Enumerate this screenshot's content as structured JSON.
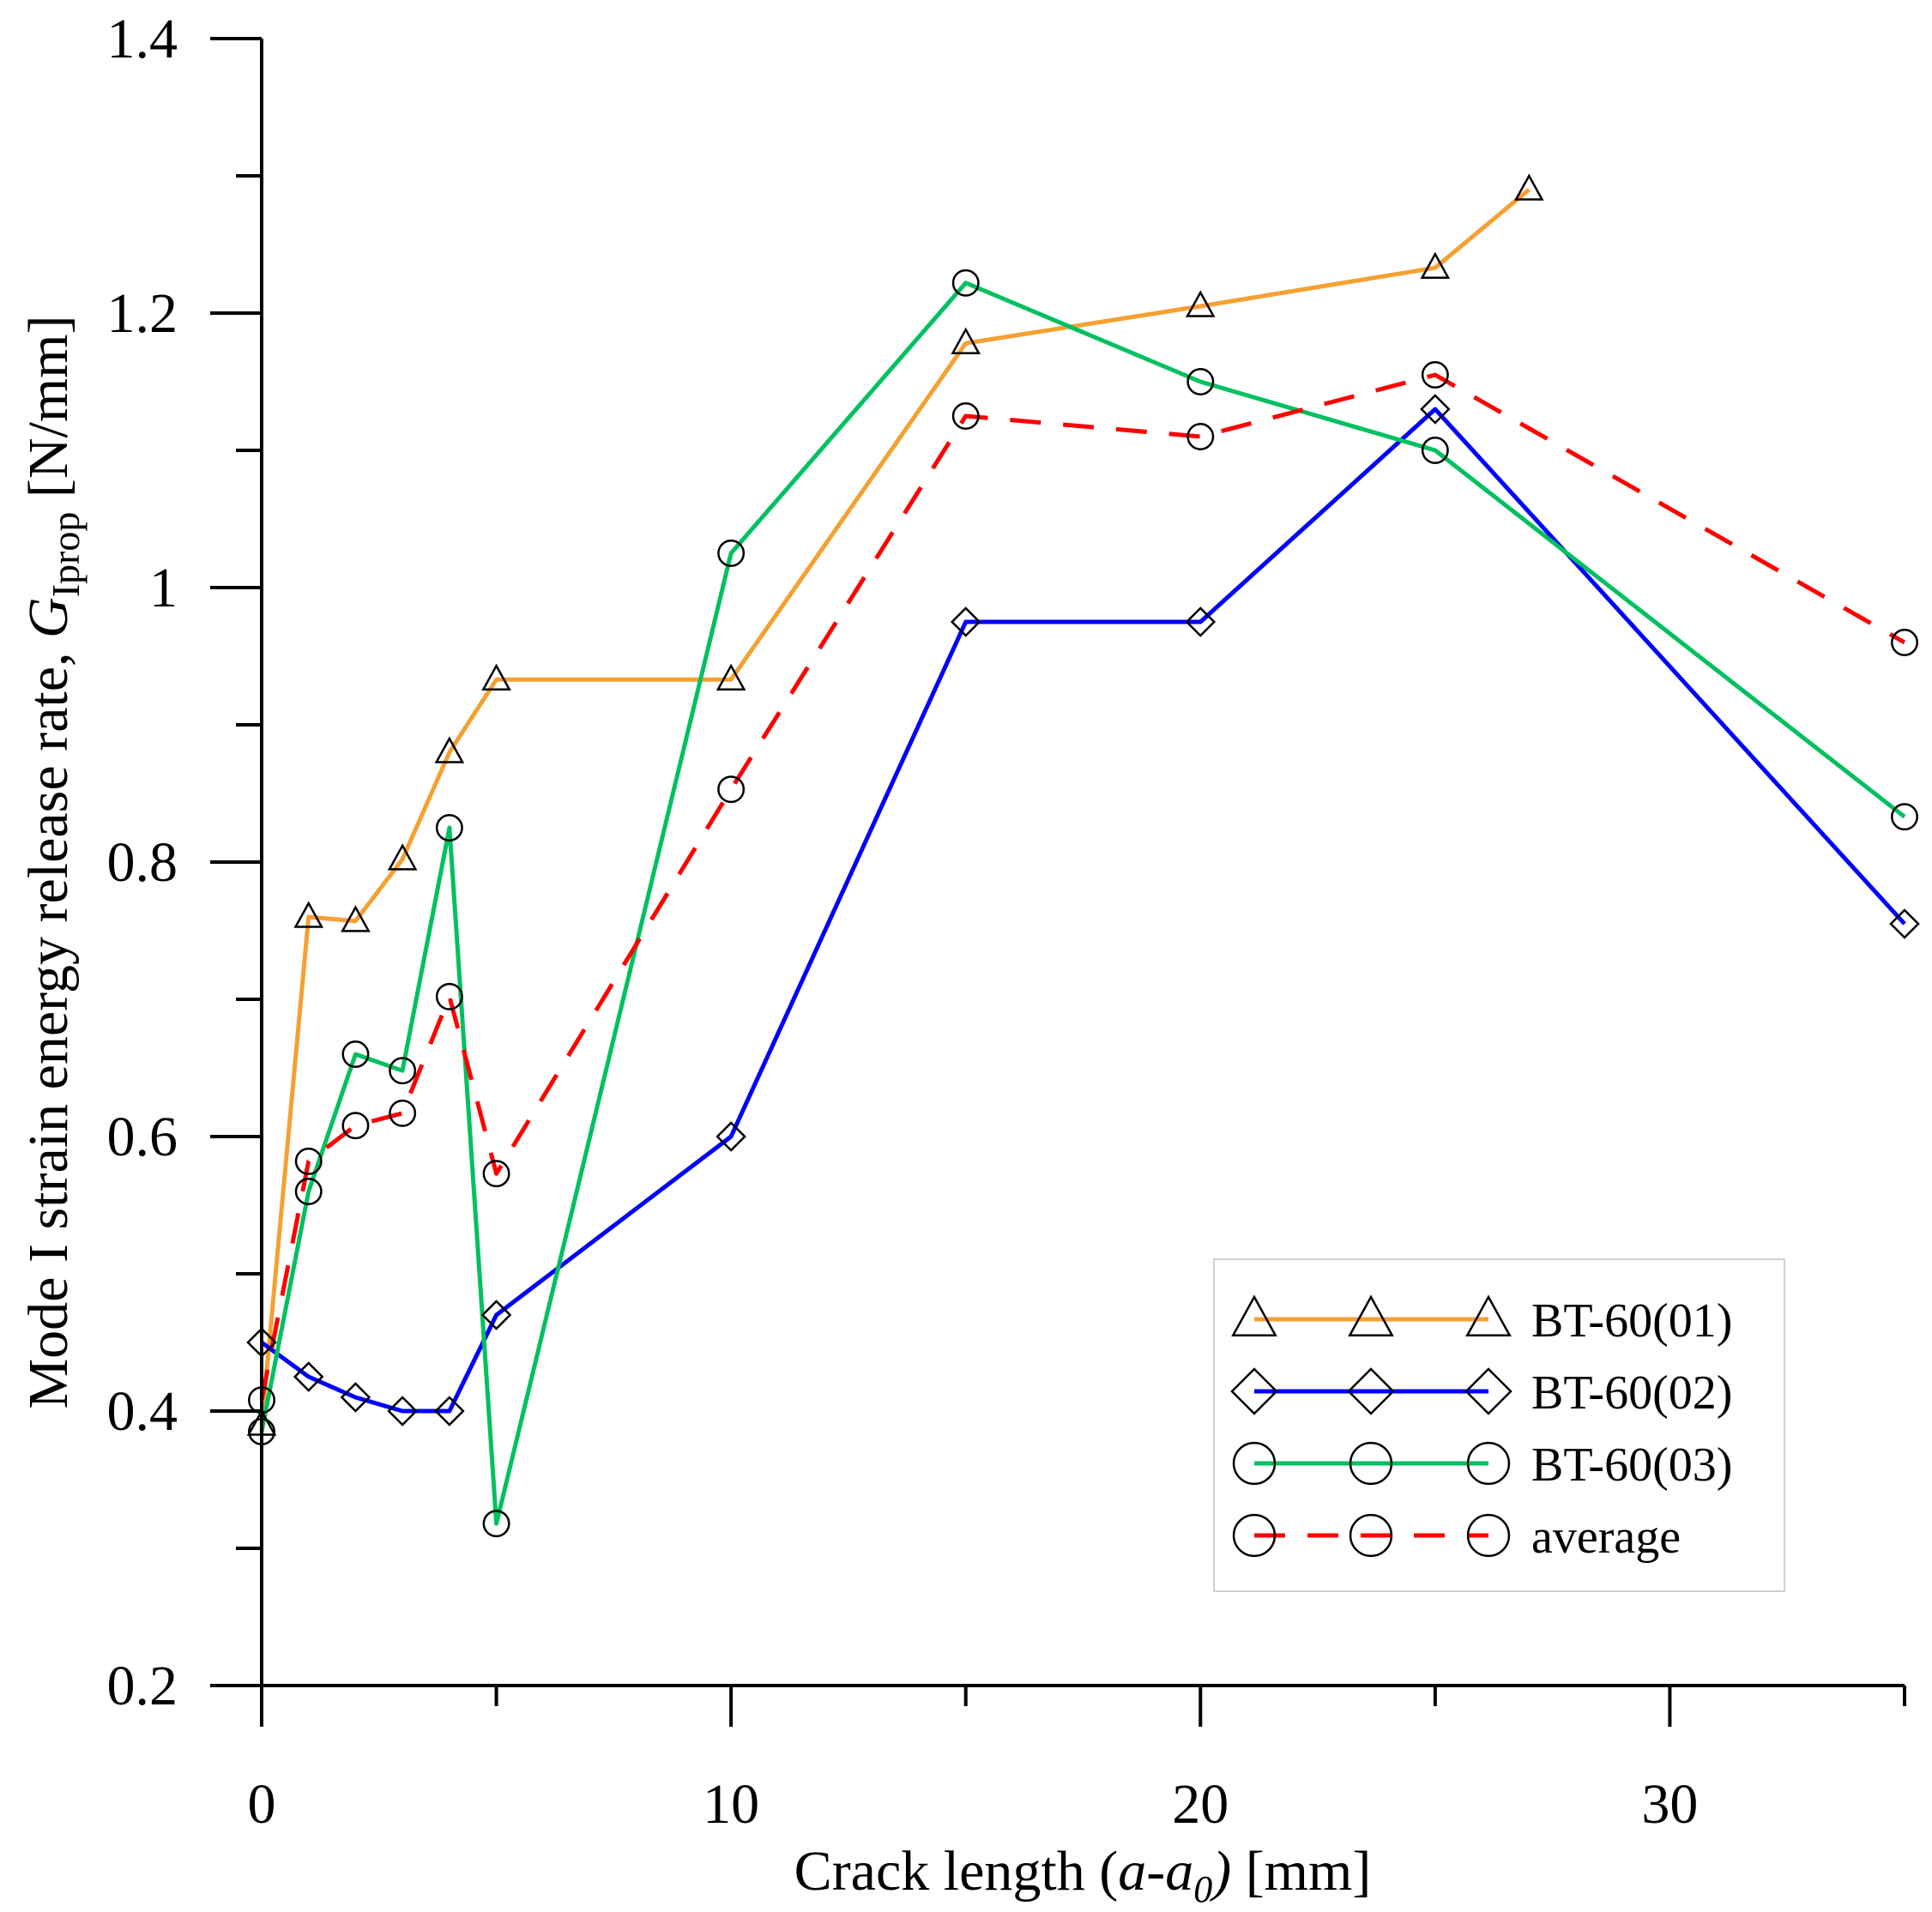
{
  "chart_data": {
    "type": "line",
    "title": "",
    "xlabel": {
      "prefix": "Crack length (",
      "var_a": "a",
      "dash": "-",
      "var_a0": "a",
      "sub0": "0",
      "close": ")",
      "suffix": " [mm]"
    },
    "ylabel": {
      "prefix": "Mode I strain energy release rate, ",
      "var_G": "G",
      "sub": "Iprop",
      "suffix": " [N/mm]"
    },
    "xlim": [
      0,
      35
    ],
    "ylim": [
      0.2,
      1.4
    ],
    "x_ticks": [
      {
        "value": 0,
        "label": "0"
      },
      {
        "value": 10,
        "label": "10"
      },
      {
        "value": 20,
        "label": "20"
      },
      {
        "value": 30,
        "label": "30"
      }
    ],
    "x_minor_ticks": [
      5,
      15,
      25,
      35
    ],
    "y_ticks": [
      {
        "value": 0.2,
        "label": "0.2"
      },
      {
        "value": 0.4,
        "label": "0.4"
      },
      {
        "value": 0.6,
        "label": "0.6"
      },
      {
        "value": 0.8,
        "label": "0.8"
      },
      {
        "value": 1.0,
        "label": "1"
      },
      {
        "value": 1.2,
        "label": "1.2"
      },
      {
        "value": 1.4,
        "label": "1.4"
      }
    ],
    "y_minor_ticks": [
      0.3,
      0.5,
      0.7,
      0.9,
      1.1,
      1.3
    ],
    "legend_position": "lower-right",
    "series": [
      {
        "name": "BT-60(01)",
        "color": "#F5A030",
        "dash": "solid",
        "marker": "triangle",
        "x": [
          0,
          1,
          2,
          3,
          4,
          5,
          10,
          15,
          20,
          25,
          27
        ],
        "y": [
          0.39,
          0.76,
          0.757,
          0.802,
          0.88,
          0.933,
          0.933,
          1.178,
          1.205,
          1.233,
          1.29
        ]
      },
      {
        "name": "BT-60(02)",
        "color": "#0000FF",
        "dash": "solid",
        "marker": "diamond",
        "x": [
          0,
          1,
          2,
          3,
          4,
          5,
          10,
          15,
          20,
          25,
          35
        ],
        "y": [
          0.45,
          0.425,
          0.41,
          0.4,
          0.4,
          0.47,
          0.6,
          0.975,
          0.975,
          1.13,
          0.755
        ]
      },
      {
        "name": "BT-60(03)",
        "color": "#00C060",
        "dash": "solid",
        "marker": "circle",
        "x": [
          0,
          1,
          2,
          3,
          4,
          5,
          10,
          15,
          20,
          25,
          35
        ],
        "y": [
          0.385,
          0.56,
          0.66,
          0.648,
          0.825,
          0.318,
          1.025,
          1.222,
          1.15,
          1.1,
          0.833
        ]
      },
      {
        "name": "average",
        "color": "#FF0000",
        "dash": "dashed",
        "marker": "circle",
        "x": [
          0,
          1,
          2,
          3,
          4,
          5,
          10,
          15,
          20,
          25,
          35
        ],
        "y": [
          0.408,
          0.582,
          0.608,
          0.617,
          0.702,
          0.573,
          0.853,
          1.125,
          1.11,
          1.155,
          0.96
        ]
      }
    ]
  }
}
